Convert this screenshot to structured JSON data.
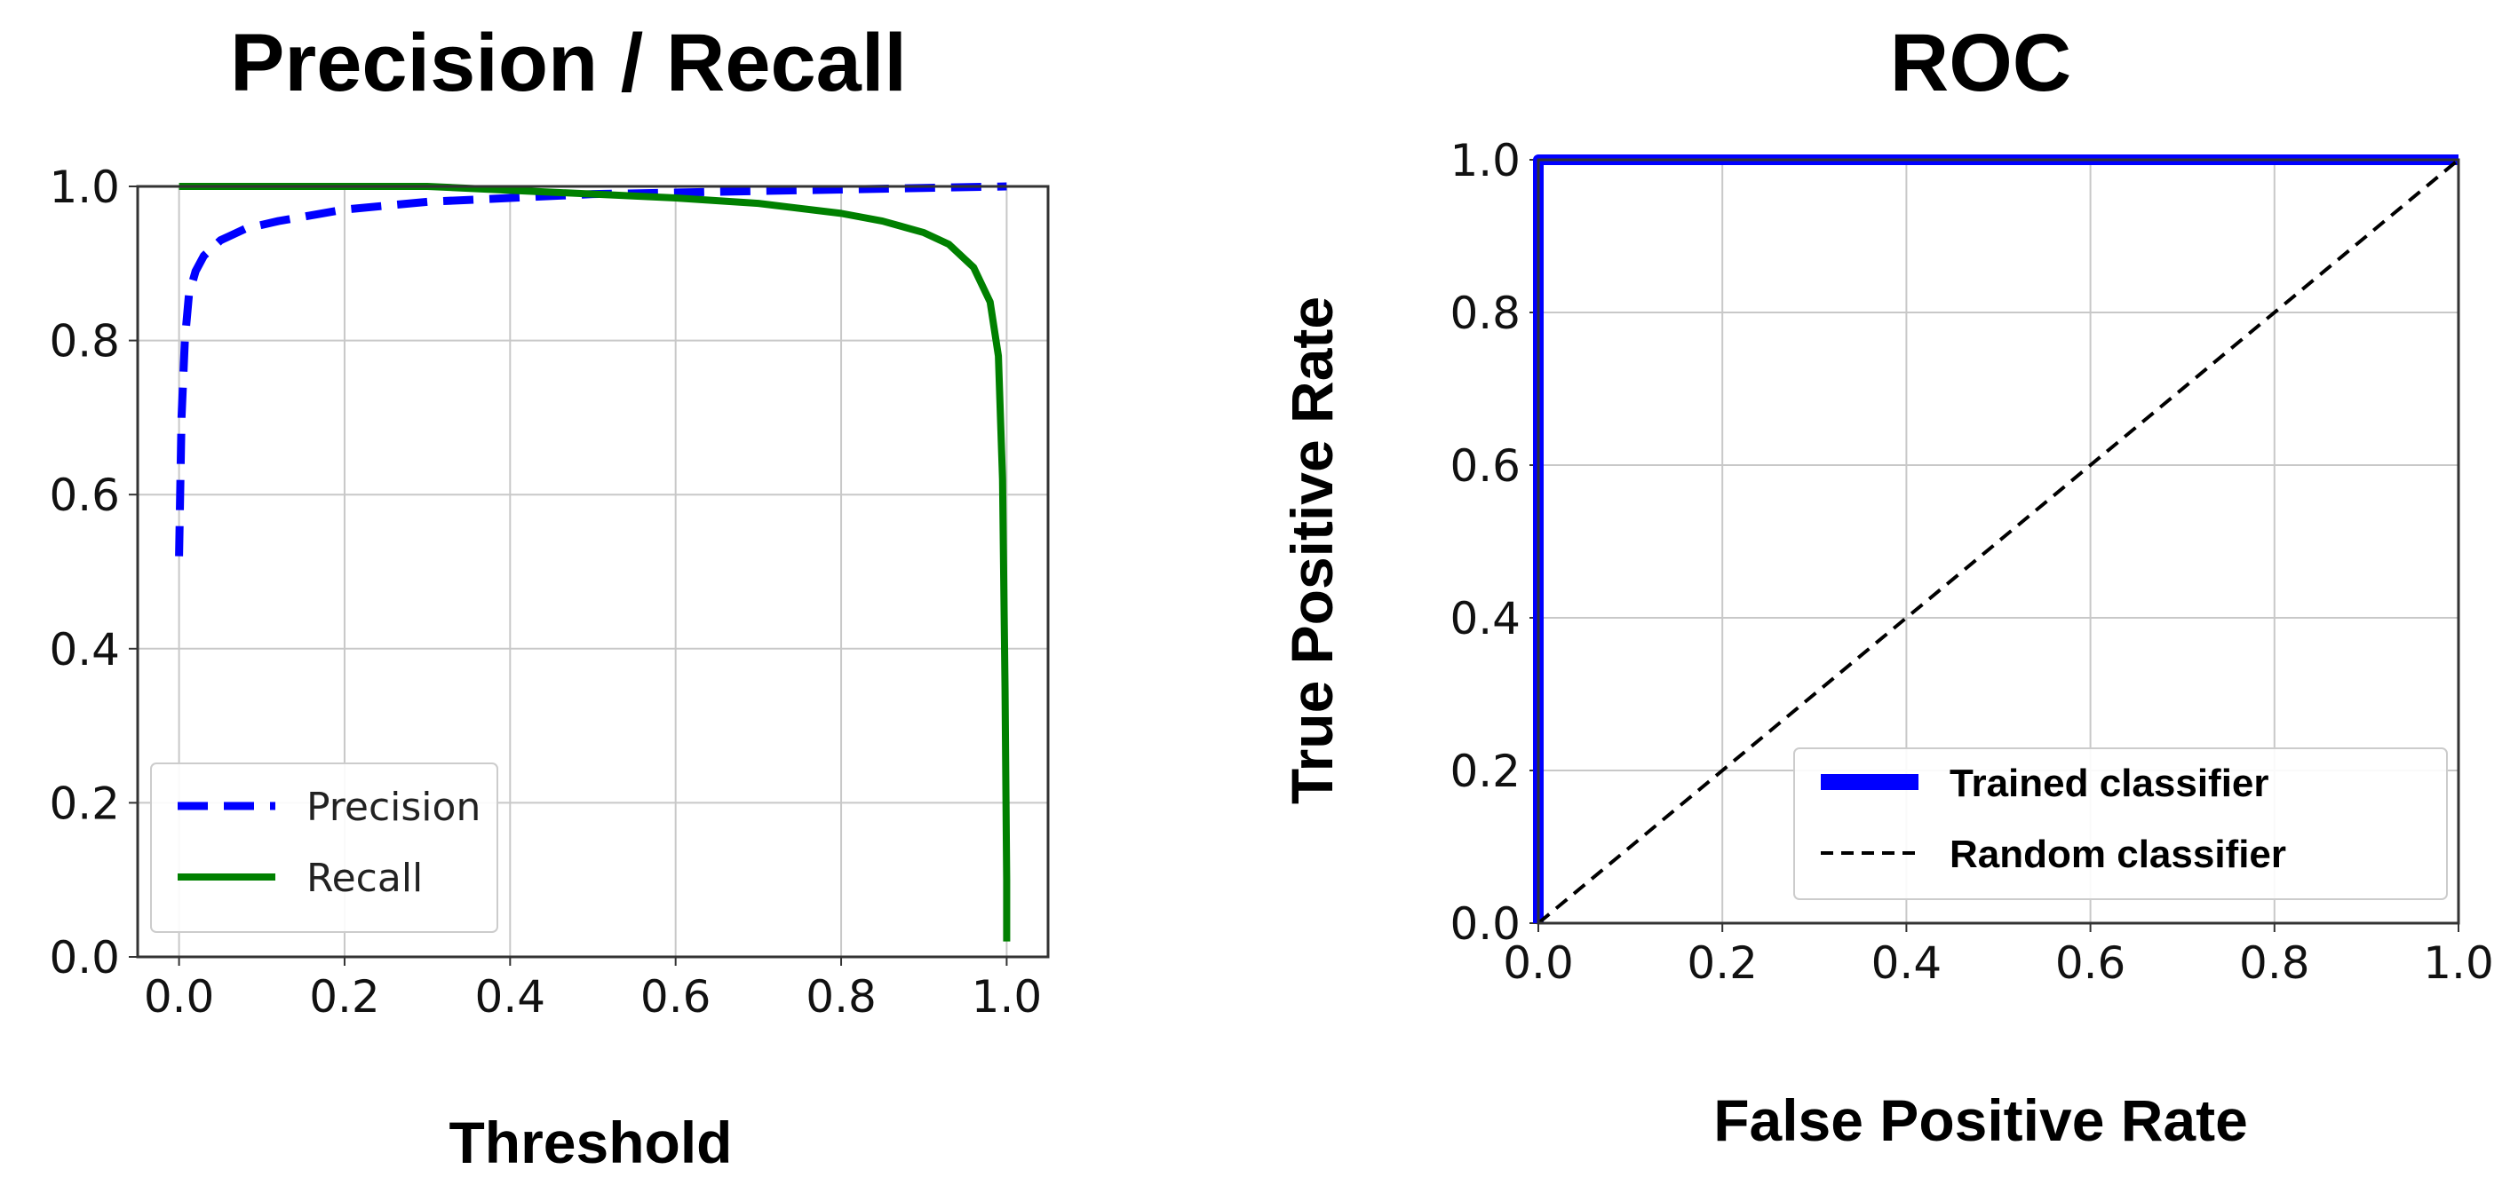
{
  "chart_data": [
    {
      "type": "line",
      "title": "Precision / Recall",
      "xlabel": "Threshold",
      "ylabel": "",
      "xlim": [
        -0.05,
        1.05
      ],
      "ylim": [
        0.0,
        1.0
      ],
      "x_ticks": [
        "0.0",
        "0.2",
        "0.4",
        "0.6",
        "0.8",
        "1.0"
      ],
      "y_ticks": [
        "0.0",
        "0.2",
        "0.4",
        "0.6",
        "0.8",
        "1.0"
      ],
      "grid": true,
      "legend_position": "bottom-left",
      "series": [
        {
          "name": "Precision",
          "color": "#0000ff",
          "style": "dashed",
          "x": [
            0.0,
            0.003,
            0.007,
            0.012,
            0.02,
            0.03,
            0.05,
            0.08,
            0.12,
            0.2,
            0.3,
            0.4,
            0.5,
            0.6,
            0.7,
            0.8,
            0.9,
            1.0
          ],
          "y": [
            0.52,
            0.7,
            0.8,
            0.86,
            0.89,
            0.91,
            0.93,
            0.945,
            0.955,
            0.97,
            0.98,
            0.985,
            0.99,
            0.992,
            0.994,
            0.996,
            0.998,
            1.0
          ]
        },
        {
          "name": "Recall",
          "color": "#008000",
          "style": "solid",
          "x": [
            0.0,
            0.1,
            0.2,
            0.3,
            0.4,
            0.5,
            0.6,
            0.7,
            0.8,
            0.85,
            0.9,
            0.93,
            0.96,
            0.98,
            0.99,
            0.995,
            0.998,
            1.0,
            1.0
          ],
          "y": [
            1.0,
            1.0,
            1.0,
            1.0,
            0.995,
            0.99,
            0.985,
            0.978,
            0.965,
            0.955,
            0.94,
            0.925,
            0.895,
            0.85,
            0.78,
            0.62,
            0.35,
            0.1,
            0.02
          ]
        }
      ]
    },
    {
      "type": "line",
      "title": "ROC",
      "xlabel": "False Positive Rate",
      "ylabel": "True Positive Rate",
      "xlim": [
        0.0,
        1.0
      ],
      "ylim": [
        0.0,
        1.0
      ],
      "x_ticks": [
        "0.0",
        "0.2",
        "0.4",
        "0.6",
        "0.8",
        "1.0"
      ],
      "y_ticks": [
        "0.0",
        "0.2",
        "0.4",
        "0.6",
        "0.8",
        "1.0"
      ],
      "grid": true,
      "legend_position": "bottom-right",
      "series": [
        {
          "name": "Trained classifier",
          "color": "#0000ff",
          "style": "solid-thick",
          "x": [
            0.0,
            0.0,
            1.0
          ],
          "y": [
            0.0,
            1.0,
            1.0
          ]
        },
        {
          "name": "Random classifier",
          "color": "#000000",
          "style": "dashed",
          "x": [
            0.0,
            1.0
          ],
          "y": [
            0.0,
            1.0
          ]
        }
      ]
    }
  ]
}
